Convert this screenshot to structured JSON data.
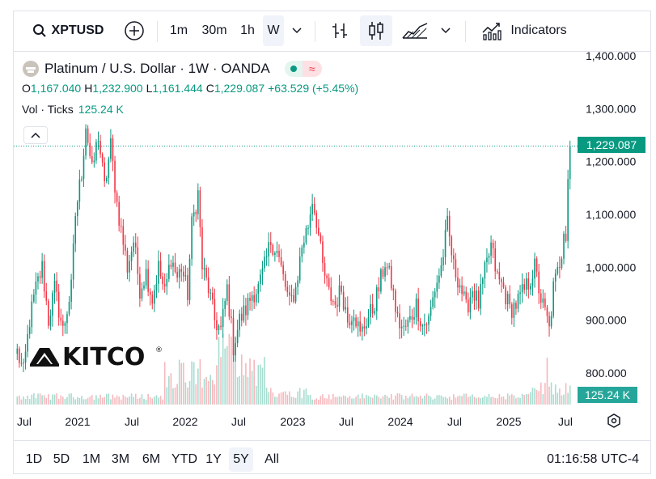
{
  "toolbar": {
    "symbol": "XPTUSD",
    "intervals": [
      "1m",
      "30m",
      "1h",
      "W"
    ],
    "active_interval": "W",
    "indicators_label": "Indicators"
  },
  "legend": {
    "title": "Platinum / U.S. Dollar · 1W · OANDA",
    "ohlc": {
      "o_label": "O",
      "o": "1,167.040",
      "h_label": "H",
      "h": "1,232.900",
      "l_label": "L",
      "l": "1,161.444",
      "c_label": "C",
      "c": "1,229.087",
      "change": "+63.529 (+5.45%)"
    },
    "vol_label": "Vol · Ticks",
    "vol_value": "125.24 K"
  },
  "watermark": "KITCO",
  "bottom": {
    "ranges": [
      "1D",
      "5D",
      "1M",
      "3M",
      "6M",
      "YTD",
      "1Y",
      "5Y",
      "All"
    ],
    "active_range": "5Y",
    "clock": "01:16:58 UTC-4"
  },
  "colors": {
    "up": "#089981",
    "down": "#f23645",
    "vol_up": "#a6dccf",
    "vol_down": "#f7b8bd"
  },
  "chart_data": {
    "type": "candlestick",
    "title": "Platinum / U.S. Dollar · 1W · OANDA",
    "y_ticks": [
      800,
      900,
      1000,
      1100,
      1200,
      1300,
      1400
    ],
    "y_tick_labels": [
      "800.000",
      "900.000",
      "1,000.000",
      "1,100.000",
      "1,200.000",
      "1,300.000",
      "1,400.000"
    ],
    "ylim": [
      730,
      1400
    ],
    "x_ticks": [
      "Jul",
      "2021",
      "Jul",
      "2022",
      "Jul",
      "2023",
      "Jul",
      "2024",
      "Jul",
      "2025",
      "Jul"
    ],
    "last_price_label": "1,229.087",
    "last_price": 1229.087,
    "last_volume_label": "125.24 K",
    "anchors": [
      [
        0,
        840
      ],
      [
        3,
        800
      ],
      [
        6,
        900
      ],
      [
        9,
        960
      ],
      [
        12,
        1000
      ],
      [
        15,
        900
      ],
      [
        18,
        960
      ],
      [
        22,
        880
      ],
      [
        26,
        960
      ],
      [
        28,
        1100
      ],
      [
        31,
        1180
      ],
      [
        33,
        1270
      ],
      [
        36,
        1180
      ],
      [
        39,
        1250
      ],
      [
        42,
        1150
      ],
      [
        45,
        1230
      ],
      [
        48,
        1120
      ],
      [
        50,
        1070
      ],
      [
        53,
        1000
      ],
      [
        56,
        1050
      ],
      [
        59,
        960
      ],
      [
        62,
        990
      ],
      [
        65,
        940
      ],
      [
        68,
        1000
      ],
      [
        71,
        950
      ],
      [
        74,
        1020
      ],
      [
        77,
        980
      ],
      [
        79,
        1000
      ],
      [
        82,
        950
      ],
      [
        84,
        1080
      ],
      [
        87,
        1140
      ],
      [
        89,
        1000
      ],
      [
        92,
        960
      ],
      [
        95,
        900
      ],
      [
        98,
        880
      ],
      [
        101,
        960
      ],
      [
        104,
        850
      ],
      [
        107,
        900
      ],
      [
        110,
        920
      ],
      [
        113,
        950
      ],
      [
        116,
        960
      ],
      [
        119,
        1000
      ],
      [
        122,
        1050
      ],
      [
        125,
        1030
      ],
      [
        128,
        980
      ],
      [
        131,
        930
      ],
      [
        134,
        960
      ],
      [
        137,
        1040
      ],
      [
        140,
        1080
      ],
      [
        142,
        1130
      ],
      [
        144,
        1090
      ],
      [
        147,
        1000
      ],
      [
        150,
        950
      ],
      [
        153,
        930
      ],
      [
        156,
        960
      ],
      [
        159,
        900
      ],
      [
        162,
        920
      ],
      [
        165,
        870
      ],
      [
        168,
        900
      ],
      [
        171,
        920
      ],
      [
        174,
        960
      ],
      [
        177,
        1010
      ],
      [
        180,
        970
      ],
      [
        183,
        900
      ],
      [
        186,
        880
      ],
      [
        189,
        900
      ],
      [
        192,
        930
      ],
      [
        195,
        890
      ],
      [
        198,
        900
      ],
      [
        201,
        960
      ],
      [
        204,
        1000
      ],
      [
        207,
        1080
      ],
      [
        210,
        1000
      ],
      [
        213,
        970
      ],
      [
        216,
        920
      ],
      [
        219,
        960
      ],
      [
        222,
        930
      ],
      [
        225,
        990
      ],
      [
        228,
        1040
      ],
      [
        231,
        980
      ],
      [
        234,
        960
      ],
      [
        237,
        920
      ],
      [
        240,
        930
      ],
      [
        243,
        950
      ],
      [
        246,
        970
      ],
      [
        249,
        1000
      ],
      [
        252,
        940
      ],
      [
        255,
        900
      ],
      [
        256,
        880
      ],
      [
        258,
        960
      ],
      [
        260,
        990
      ],
      [
        262,
        1030
      ],
      [
        263,
        1080
      ],
      [
        264,
        1060
      ],
      [
        265,
        1167
      ],
      [
        266,
        1229
      ]
    ]
  }
}
